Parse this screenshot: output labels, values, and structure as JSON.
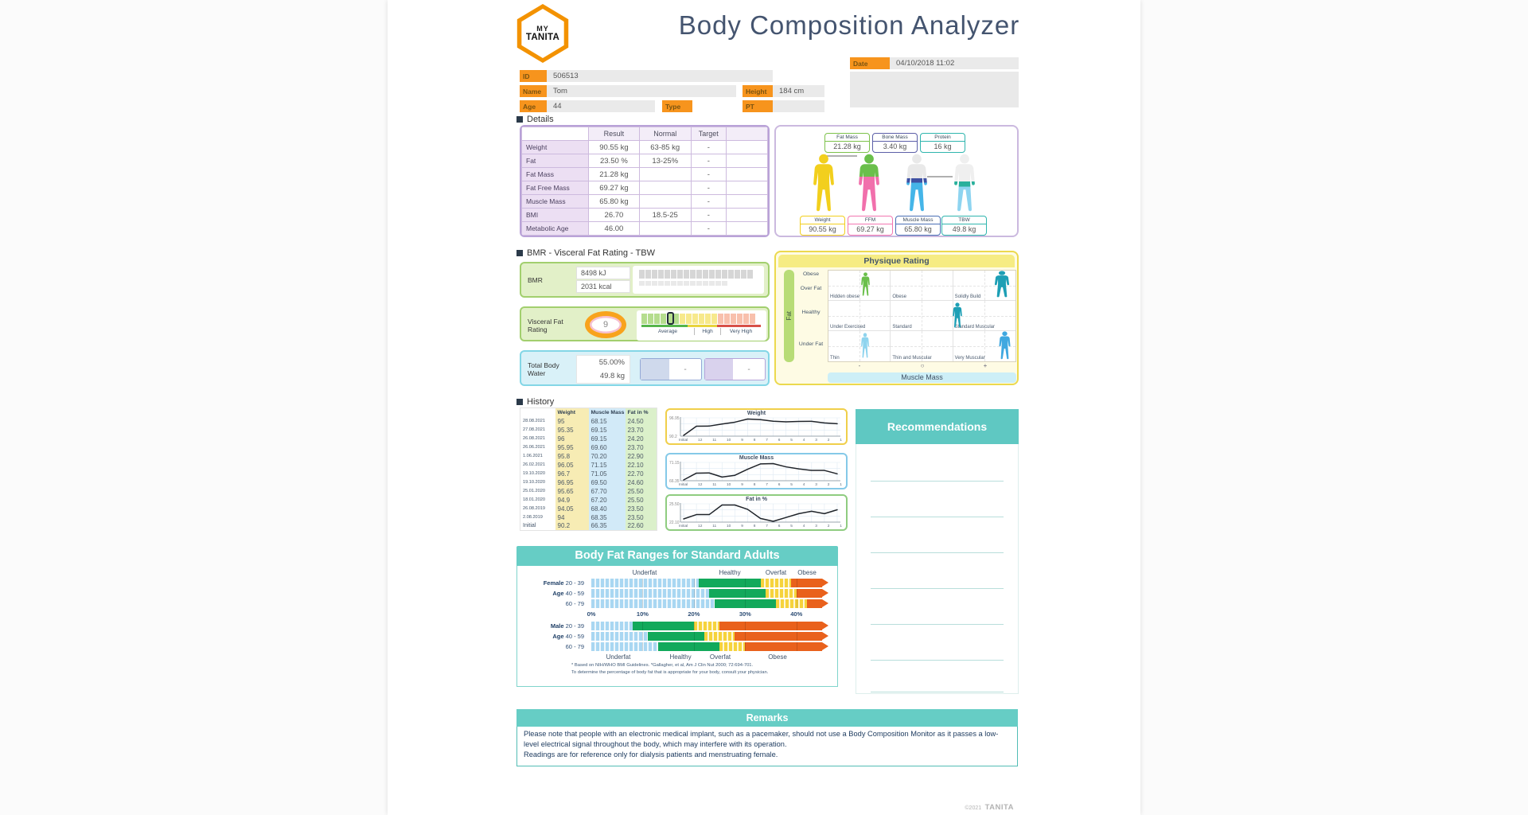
{
  "header": {
    "logo_line1": "MY",
    "logo_line2": "TANITA",
    "title": "Body Composition Analyzer"
  },
  "patient": {
    "date_label": "Date",
    "date_value": "04/10/2018 11:02",
    "id_label": "ID",
    "id_value": "506513",
    "name_label": "Name",
    "name_value": "Tom",
    "height_label": "Height",
    "height_value": "184 cm",
    "age_label": "Age",
    "age_value": "44",
    "type_label": "Type",
    "pt_label": "PT"
  },
  "details": {
    "section_title": "Details",
    "columns": [
      "Result",
      "Normal",
      "Target"
    ],
    "rows": [
      {
        "label": "Weight",
        "result": "90.55 kg",
        "normal": "63-85 kg",
        "target": "-"
      },
      {
        "label": "Fat",
        "result": "23.50 %",
        "normal": "13-25%",
        "target": "-"
      },
      {
        "label": "Fat Mass",
        "result": "21.28 kg",
        "normal": "",
        "target": "-"
      },
      {
        "label": "Fat Free Mass",
        "result": "69.27 kg",
        "normal": "",
        "target": "-"
      },
      {
        "label": "Muscle Mass",
        "result": "65.80 kg",
        "normal": "",
        "target": "-"
      },
      {
        "label": "BMI",
        "result": "26.70",
        "normal": "18.5-25",
        "target": "-"
      },
      {
        "label": "Metabolic Age",
        "result": "46.00",
        "normal": "",
        "target": "-"
      }
    ]
  },
  "body_figures": {
    "top_badges": [
      {
        "label": "Fat Mass",
        "value": "21.28 kg",
        "color": "#7dc24b"
      },
      {
        "label": "Bone Mass",
        "value": "3.40 kg",
        "color": "#5c5fa8"
      },
      {
        "label": "Protein",
        "value": "16 kg",
        "color": "#2fb5ae"
      }
    ],
    "bottom_badges": [
      {
        "label": "Weight",
        "value": "90.55 kg",
        "color": "#f2cf1d"
      },
      {
        "label": "FFM",
        "value": "69.27 kg",
        "color": "#f277b1"
      },
      {
        "label": "Muscle Mass",
        "value": "65.80 kg",
        "color": "#4a6fb5"
      },
      {
        "label": "TBW",
        "value": "49.8 kg",
        "color": "#2fb5ae"
      }
    ]
  },
  "bmr_section": {
    "section_title": "BMR - Visceral Fat Rating - TBW",
    "bmr_label": "BMR",
    "bmr_kj": "8498 kJ",
    "bmr_kcal": "2031 kcal",
    "visceral_label": "Visceral Fat Rating",
    "visceral_value": "9",
    "visceral_scale_labels": [
      "Average",
      "High",
      "Very High"
    ],
    "visceral_indicator_index": 4,
    "tbw_label": "Total Body Water",
    "tbw_percent": "55.00%",
    "tbw_kg": "49.8 kg",
    "tbw_box1": "-",
    "tbw_box2": "-"
  },
  "physique": {
    "title": "Physique Rating",
    "y_axis_label": "Fat",
    "x_axis_label": "Muscle Mass",
    "row_labels": [
      "Obese",
      "Over Fat",
      "Healthy",
      "Under Fat"
    ],
    "x_ticks": [
      "-",
      "○",
      "+"
    ],
    "cells": [
      [
        "Hidden obese",
        "Obese",
        "Solidly Build"
      ],
      [
        "Under Exercised",
        "Standard",
        "Standard Muscular"
      ],
      [
        "Thin",
        "Thin and Muscular",
        "Very Muscular"
      ]
    ]
  },
  "history": {
    "section_title": "History",
    "columns": [
      "Weight",
      "Muscle Mass",
      "Fat in %"
    ],
    "rows": [
      {
        "date": "28.08.2021",
        "weight": "95",
        "muscle": "68.15",
        "fat": "24.50"
      },
      {
        "date": "27.08.2021",
        "weight": "95.35",
        "muscle": "69.15",
        "fat": "23.70"
      },
      {
        "date": "26.08.2021",
        "weight": "96",
        "muscle": "69.15",
        "fat": "24.20"
      },
      {
        "date": "26.06.2021",
        "weight": "95.95",
        "muscle": "69.60",
        "fat": "23.70"
      },
      {
        "date": "1.06.2021",
        "weight": "95.8",
        "muscle": "70.20",
        "fat": "22.90"
      },
      {
        "date": "26.02.2021",
        "weight": "96.05",
        "muscle": "71.15",
        "fat": "22.10"
      },
      {
        "date": "19.10.2020",
        "weight": "96.7",
        "muscle": "71.05",
        "fat": "22.70"
      },
      {
        "date": "19.10.2020",
        "weight": "96.95",
        "muscle": "69.50",
        "fat": "24.60"
      },
      {
        "date": "25.01.2020",
        "weight": "95.65",
        "muscle": "67.70",
        "fat": "25.50"
      },
      {
        "date": "18.01.2020",
        "weight": "94.9",
        "muscle": "67.20",
        "fat": "25.50"
      },
      {
        "date": "26.08.2019",
        "weight": "94.05",
        "muscle": "68.40",
        "fat": "23.50"
      },
      {
        "date": "2.08.2019",
        "weight": "94",
        "muscle": "68.35",
        "fat": "23.50"
      },
      {
        "date": "Initial",
        "weight": "90.2",
        "muscle": "66.35",
        "fat": "22.60"
      }
    ]
  },
  "recommendations": {
    "title": "Recommendations"
  },
  "chart_data": [
    {
      "type": "line",
      "title": "Weight",
      "border_color": "#f0cf4a",
      "x": [
        "Initial",
        "12",
        "11",
        "10",
        "9",
        "8",
        "7",
        "6",
        "5",
        "4",
        "3",
        "2",
        "1"
      ],
      "values": [
        90.2,
        94,
        94.05,
        94.9,
        95.65,
        96.95,
        96.7,
        96.05,
        95.8,
        95.95,
        96,
        95.35,
        95
      ],
      "ylim": [
        90.2,
        96.95
      ],
      "y_top_label": "96.95",
      "y_bottom_label": "90.2"
    },
    {
      "type": "line",
      "title": "Muscle Mass",
      "border_color": "#85c9e8",
      "x": [
        "Initial",
        "12",
        "11",
        "10",
        "9",
        "8",
        "7",
        "6",
        "5",
        "4",
        "3",
        "2",
        "1"
      ],
      "values": [
        66.35,
        68.35,
        68.4,
        67.2,
        67.7,
        69.5,
        71.05,
        71.15,
        70.2,
        69.6,
        69.15,
        69.15,
        68.15
      ],
      "ylim": [
        66.35,
        71.15
      ],
      "y_top_label": "71.15",
      "y_bottom_label": "66.35"
    },
    {
      "type": "line",
      "title": "Fat in %",
      "border_color": "#8fcc80",
      "x": [
        "Initial",
        "12",
        "11",
        "10",
        "9",
        "8",
        "7",
        "6",
        "5",
        "4",
        "3",
        "2",
        "1"
      ],
      "values": [
        22.6,
        23.5,
        23.5,
        25.5,
        25.5,
        24.6,
        22.7,
        22.1,
        22.9,
        23.7,
        24.2,
        23.7,
        24.5
      ],
      "ylim": [
        22.1,
        25.5
      ],
      "y_top_label": "25.50",
      "y_bottom_label": "22.10"
    },
    {
      "type": "bar",
      "title": "Body Fat Ranges for Standard Adults",
      "zone_labels": [
        "Underfat",
        "Healthy",
        "Overfat",
        "Obese"
      ],
      "axis_ticks": [
        "0%",
        "10%",
        "20%",
        "30%",
        "40%"
      ],
      "xlim": [
        0,
        45
      ],
      "colors": {
        "underfat": "#a9d7f2",
        "healthy": "#12a95b",
        "overfat": "#f6d33c",
        "obese": "#e9611c"
      },
      "groups": [
        {
          "group": "Female",
          "age_word": "Age",
          "rows": [
            {
              "label": "20 - 39",
              "underfat_end": 21,
              "healthy_end": 33,
              "overfat_end": 39
            },
            {
              "label": "40 - 59",
              "underfat_end": 23,
              "healthy_end": 34,
              "overfat_end": 40
            },
            {
              "label": "60 - 79",
              "underfat_end": 24,
              "healthy_end": 36,
              "overfat_end": 42
            }
          ]
        },
        {
          "group": "Male",
          "age_word": "Age",
          "rows": [
            {
              "label": "20 - 39",
              "underfat_end": 8,
              "healthy_end": 20,
              "overfat_end": 25
            },
            {
              "label": "40 - 59",
              "underfat_end": 11,
              "healthy_end": 22,
              "overfat_end": 28
            },
            {
              "label": "60 - 79",
              "underfat_end": 13,
              "healthy_end": 25,
              "overfat_end": 30
            }
          ]
        }
      ],
      "footnote_line1": "* Based on NIH/WHO BMI Guidelines.  *Gallagher, et al, Am J Clin Nut 2000; 72:694-701.",
      "footnote_line2": "To determine the percentage of body fat that is appropriate for your body, consult your physician."
    }
  ],
  "remarks": {
    "title": "Remarks",
    "para1": "Please note that people with an electronic medical implant, such as a pacemaker, should not use a Body Composition Monitor as it passes a low-level electrical signal throughout the body, which may interfere with its operation.",
    "para2": "Readings are for reference only for dialysis patients and menstruating female."
  },
  "footer": {
    "copyright": "©2021",
    "brand": "TANITA"
  }
}
